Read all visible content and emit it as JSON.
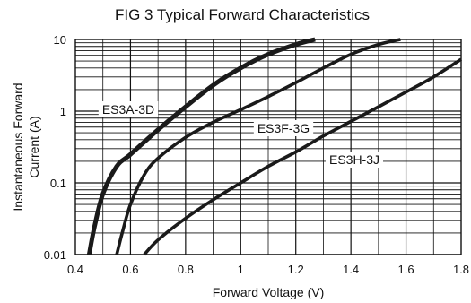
{
  "chart_data": {
    "type": "line",
    "title": "FIG 3 Typical Forward Characteristics",
    "xlabel": "Forward Voltage (V)",
    "ylabel_lines": [
      "Instantaneous Forward",
      "Current (A)"
    ],
    "xlim": [
      0.4,
      1.8
    ],
    "ylim": [
      0.01,
      10
    ],
    "y_scale": "log",
    "grid": true,
    "x_ticks": [
      0.4,
      0.6,
      0.8,
      1.0,
      1.2,
      1.4,
      1.6,
      1.8
    ],
    "x_tick_labels": [
      "0.4",
      "0.6",
      "0.8",
      "1",
      "1.2",
      "1.4",
      "1.6",
      "1.8"
    ],
    "y_ticks": [
      0.01,
      0.1,
      1,
      10
    ],
    "y_tick_labels": [
      "0.01",
      "0.1",
      "1",
      "10"
    ],
    "series": [
      {
        "name": "ES3A-3D",
        "line_weight": "heavy",
        "x": [
          0.45,
          0.47,
          0.5,
          0.55,
          0.6,
          0.7,
          0.8,
          0.9,
          1.0,
          1.1,
          1.2,
          1.27
        ],
        "y": [
          0.01,
          0.025,
          0.07,
          0.17,
          0.25,
          0.55,
          1.15,
          2.3,
          4.0,
          6.2,
          8.5,
          10
        ]
      },
      {
        "name": "ES3F-3G",
        "line_weight": "medium",
        "x": [
          0.55,
          0.57,
          0.6,
          0.65,
          0.7,
          0.8,
          0.9,
          1.0,
          1.1,
          1.2,
          1.3,
          1.4,
          1.5,
          1.58
        ],
        "y": [
          0.01,
          0.02,
          0.05,
          0.13,
          0.22,
          0.43,
          0.7,
          1.05,
          1.6,
          2.5,
          4.0,
          6.2,
          8.5,
          10
        ]
      },
      {
        "name": "ES3H-3J",
        "line_weight": "medium",
        "x": [
          0.65,
          0.7,
          0.8,
          0.9,
          1.0,
          1.1,
          1.2,
          1.3,
          1.4,
          1.5,
          1.6,
          1.7,
          1.8
        ],
        "y": [
          0.01,
          0.016,
          0.032,
          0.058,
          0.1,
          0.17,
          0.27,
          0.45,
          0.72,
          1.15,
          1.85,
          3.0,
          5.3
        ]
      }
    ]
  }
}
